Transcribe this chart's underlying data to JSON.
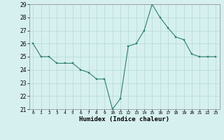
{
  "x": [
    0,
    1,
    2,
    3,
    4,
    5,
    6,
    7,
    8,
    9,
    10,
    11,
    12,
    13,
    14,
    15,
    16,
    17,
    18,
    19,
    20,
    21,
    22,
    23
  ],
  "y": [
    26.0,
    25.0,
    25.0,
    24.5,
    24.5,
    24.5,
    24.0,
    23.8,
    23.3,
    23.3,
    21.0,
    21.8,
    25.8,
    26.0,
    27.0,
    29.0,
    28.0,
    27.2,
    26.5,
    26.3,
    25.2,
    25.0,
    25.0,
    25.0
  ],
  "xlabel": "Humidex (Indice chaleur)",
  "ylim": [
    21,
    29
  ],
  "xlim": [
    -0.5,
    23.5
  ],
  "yticks": [
    21,
    22,
    23,
    24,
    25,
    26,
    27,
    28,
    29
  ],
  "xticks": [
    0,
    1,
    2,
    3,
    4,
    5,
    6,
    7,
    8,
    9,
    10,
    11,
    12,
    13,
    14,
    15,
    16,
    17,
    18,
    19,
    20,
    21,
    22,
    23
  ],
  "line_color": "#2e7d6e",
  "marker_color": "#2e7d6e",
  "bg_color": "#d6f0ef",
  "grid_color": "#b8dcd9"
}
